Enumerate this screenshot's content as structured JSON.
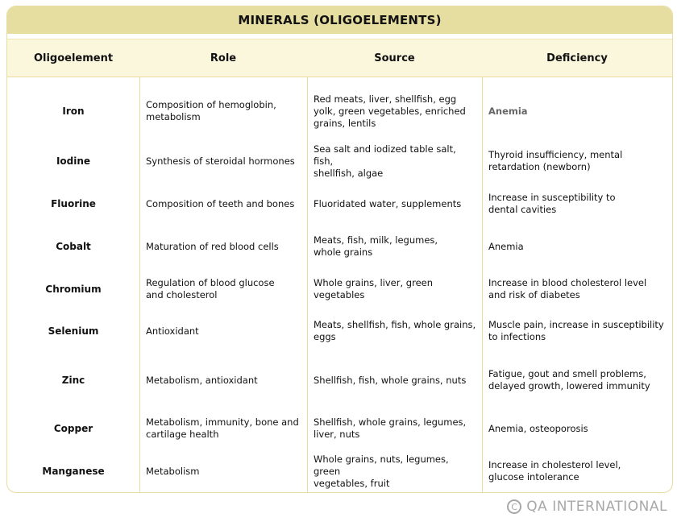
{
  "title": "MINERALS (OLIGOELEMENTS)",
  "headers": [
    "Oligoelement",
    "Role",
    "Source",
    "Deficiency"
  ],
  "rows": [
    {
      "name": "Iron",
      "role": "Composition of hemoglobin,\nmetabolism",
      "source": "Red meats, liver, shellfish, egg\nyolk, green vegetables, enriched\ngrains, lentils",
      "deficiency": "Anemia"
    },
    {
      "name": "Iodine",
      "role": "Synthesis of steroidal hormones",
      "source": "Sea salt and iodized table salt, fish,\nshellfish, algae",
      "deficiency": "Thyroid insufficiency, mental\nretardation (newborn)"
    },
    {
      "name": "Fluorine",
      "role": "Composition of teeth and bones",
      "source": "Fluoridated water, supplements",
      "deficiency": "Increase in susceptibility to\ndental cavities"
    },
    {
      "name": "Cobalt",
      "role": "Maturation of red blood cells",
      "source": "Meats, fish, milk, legumes,\nwhole grains",
      "deficiency": "Anemia"
    },
    {
      "name": "Chromium",
      "role": "Regulation of blood glucose\nand cholesterol",
      "source": "Whole grains, liver, green\nvegetables",
      "deficiency": "Increase in blood cholesterol level\nand risk of diabetes"
    },
    {
      "name": "Selenium",
      "role": "Antioxidant",
      "source": "Meats, shellfish, fish, whole grains,\neggs",
      "deficiency": "Muscle pain, increase in susceptibility\nto infections"
    },
    {
      "name": "Zinc",
      "role": "Metabolism, antioxidant",
      "source": "Shellfish, fish, whole grains, nuts",
      "deficiency": "Fatigue, gout and smell problems,\ndelayed growth, lowered immunity"
    },
    {
      "name": "Copper",
      "role": "Metabolism, immunity, bone and\ncartilage health",
      "source": "Shellfish, whole grains, legumes,\nliver, nuts",
      "deficiency": "Anemia, osteoporosis"
    },
    {
      "name": "Manganese",
      "role": "Metabolism",
      "source": "Whole grains, nuts, legumes, green\nvegetables, fruit",
      "deficiency": "Increase in cholesterol level,\nglucose intolerance"
    }
  ],
  "copyright": "QA INTERNATIONAL",
  "colors": {
    "accent": "#e6dda1",
    "header_bg": "#fbf7dc",
    "border": "#e8dca0"
  }
}
